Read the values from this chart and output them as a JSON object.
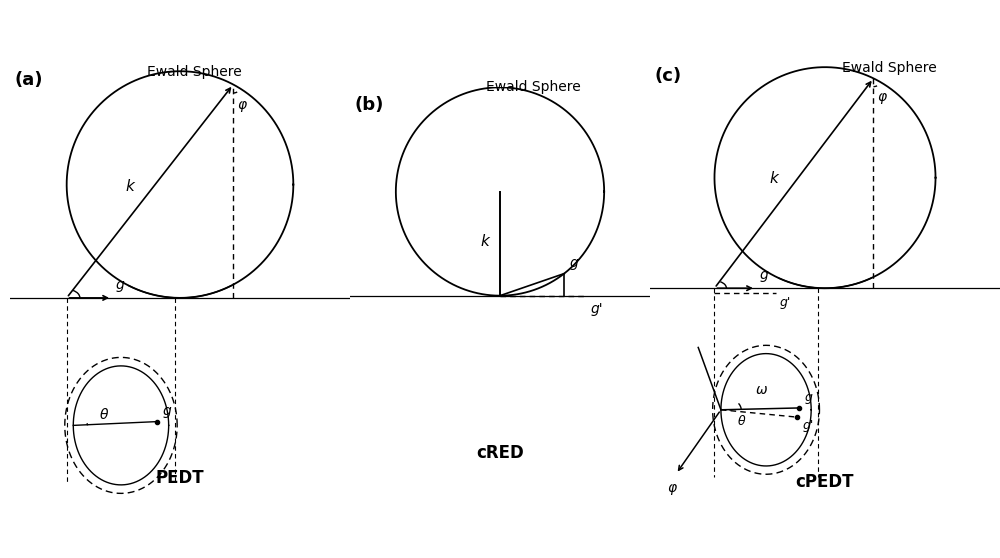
{
  "fig_width": 10.0,
  "fig_height": 5.58,
  "bg_color": "#ffffff",
  "panel_labels": [
    "(a)",
    "(b)",
    "(c)"
  ],
  "panel_titles": [
    "PEDT",
    "cRED",
    "cPEDT"
  ],
  "ewald_label": "Ewald Sphere",
  "title_fontsize": 12,
  "label_fontsize": 13,
  "annot_fontsize": 10,
  "line_color": "#000000"
}
